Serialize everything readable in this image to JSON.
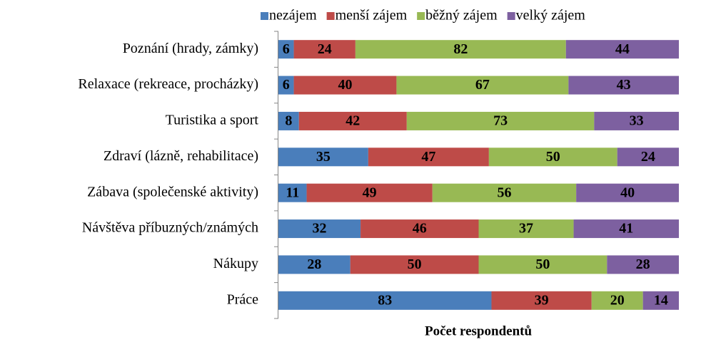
{
  "chart_data": {
    "type": "stacked-bar-horizontal",
    "xlabel": "Počet respondentů",
    "categories": [
      "Poznání (hrady, zámky)",
      "Relaxace (rekreace, procházky)",
      "Turistika a sport",
      "Zdraví (lázně, rehabilitace)",
      "Zábava (společenské aktivity)",
      "Návštěva příbuzných/známých",
      "Nákupy",
      "Práce"
    ],
    "series": [
      {
        "name": "nezájem",
        "color": "#4a7ebb",
        "values": [
          6,
          6,
          8,
          35,
          11,
          32,
          28,
          83
        ]
      },
      {
        "name": "menší zájem",
        "color": "#be4b48",
        "values": [
          24,
          40,
          42,
          47,
          49,
          46,
          50,
          39
        ]
      },
      {
        "name": "běžný zájem",
        "color": "#98b954",
        "values": [
          82,
          67,
          73,
          50,
          56,
          37,
          50,
          20
        ]
      },
      {
        "name": "velký zájem",
        "color": "#7d60a0",
        "values": [
          44,
          43,
          33,
          24,
          40,
          41,
          28,
          14
        ]
      }
    ],
    "xlim": [
      0,
      156
    ],
    "legend": "top"
  }
}
